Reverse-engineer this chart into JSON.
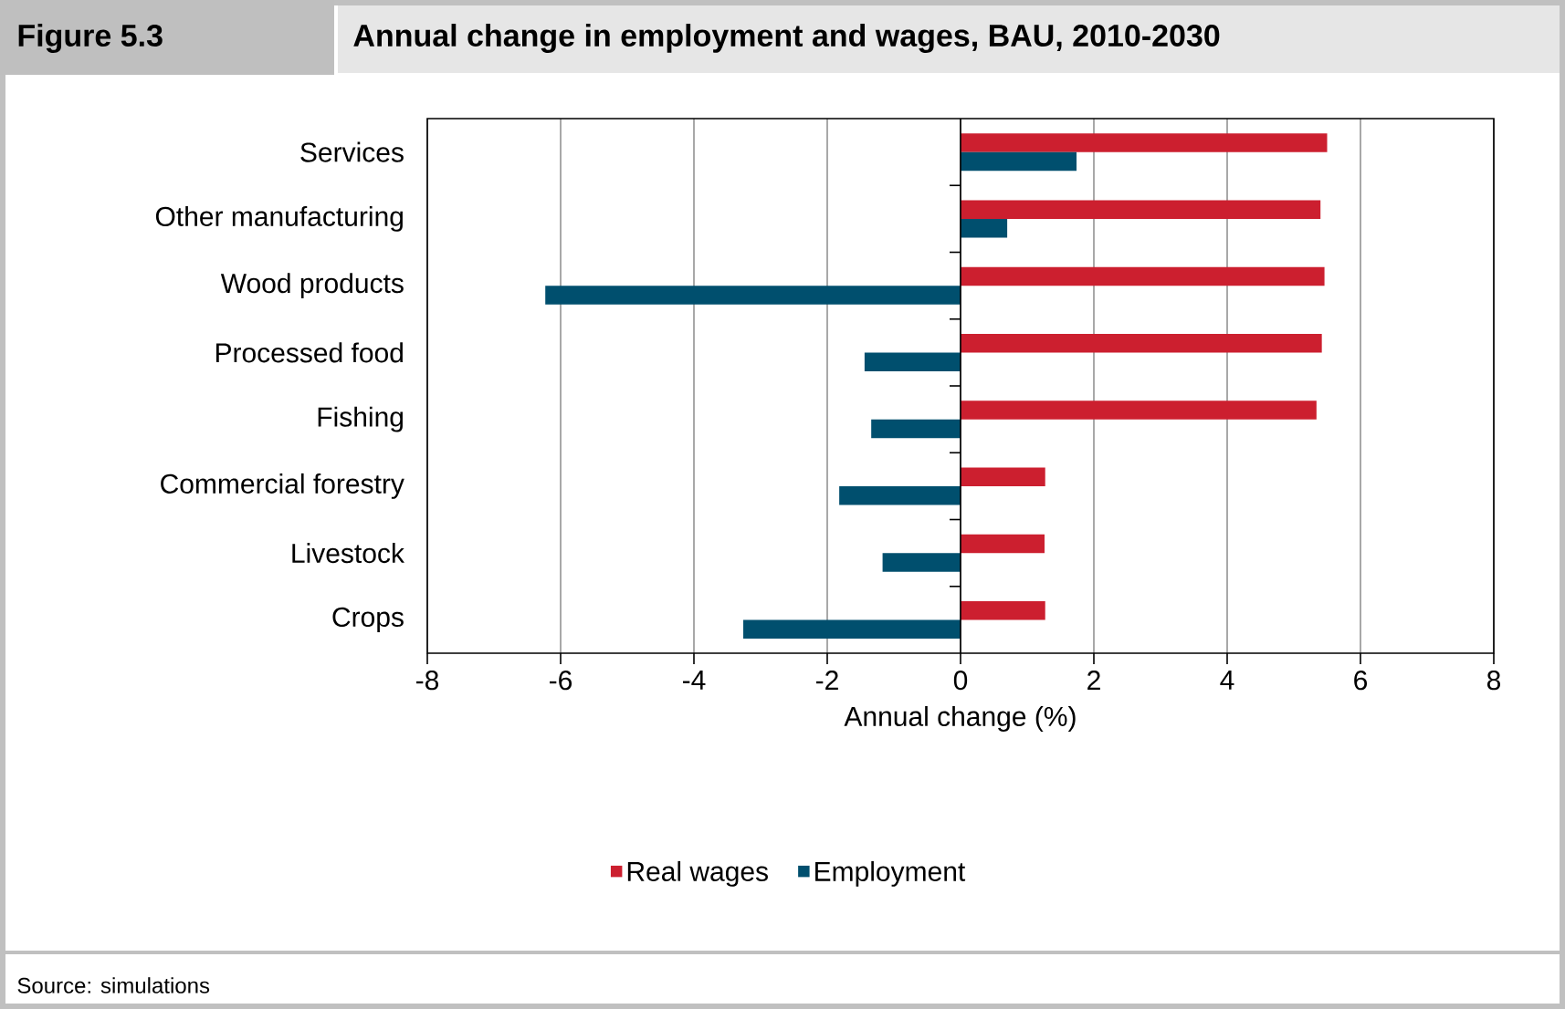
{
  "chart_data": {
    "type": "bar",
    "orientation": "horizontal",
    "title": "Annual change in employment and wages, BAU, 2010-2030",
    "xlabel": "Annual change (%)",
    "categories": [
      "Services",
      "Other manufacturing",
      "Wood products",
      "Processed food",
      "Fishing",
      "Commercial forestry",
      "Livestock",
      "Crops"
    ],
    "series": [
      {
        "name": "Real wages",
        "color": "#cc1f2f",
        "values": [
          5.5,
          5.4,
          5.46,
          5.42,
          5.34,
          1.27,
          1.26,
          1.27
        ]
      },
      {
        "name": "Employment",
        "color": "#004f6e",
        "values": [
          1.74,
          0.7,
          -6.23,
          -1.44,
          -1.34,
          -1.82,
          -1.17,
          -3.26
        ]
      }
    ],
    "xlim": [
      -8,
      8
    ],
    "xticks": [
      -8,
      -6,
      -4,
      -2,
      0,
      2,
      4,
      6,
      8
    ],
    "grid": "x",
    "legend": "bottom",
    "annotations": [
      "Figure 5.3",
      "Source: simulations"
    ]
  }
}
